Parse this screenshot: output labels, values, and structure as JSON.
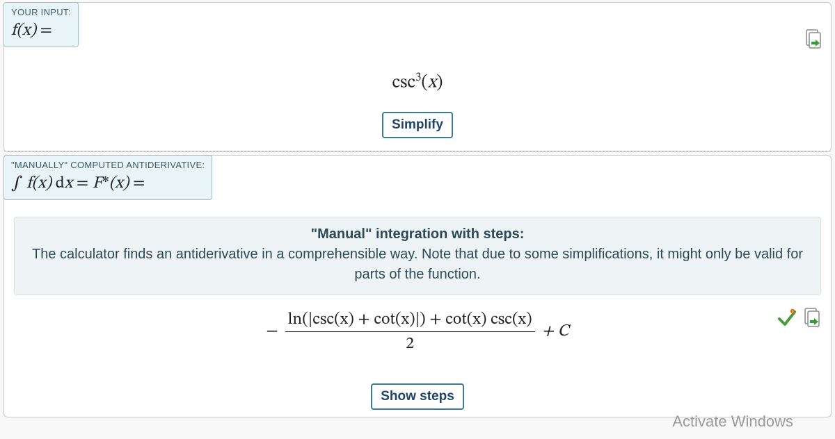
{
  "section1": {
    "tab_label": "YOUR INPUT:",
    "tab_expr_html": "<span class='var'>f</span>(<span class='var'>x</span>) <span class='rom'>=</span>",
    "formula_html": "<span class='fn'>csc</span><sup>3</sup>(<span class='var'>x</span>)",
    "button": "Simplify"
  },
  "section2": {
    "tab_label": "\"MANUALLY\" COMPUTED ANTIDERIVATIVE:",
    "tab_expr_html": "<span class='rom'>∫</span> <span class='var'>f</span>(<span class='var'>x</span>) <span class='rom'>d</span><span class='var'>x</span> <span class='rom'>=</span> <span class='var'>F</span><span class='rom'>*</span>(<span class='var'>x</span>) <span class='rom'>=</span>",
    "note_title": "\"Manual\" integration with steps:",
    "note_body": "The calculator finds an antiderivative in a comprehensible way. Note that due to some simplifications, it might only be valid for parts of the function.",
    "numerator_html": "<span class='fn'>ln</span>(|<span class='fn'>csc</span>(<span class='var'>x</span>) + <span class='fn'>cot</span>(<span class='var'>x</span>)|) + <span class='fn'>cot</span>(<span class='var'>x</span>) <span class='fn'>csc</span>(<span class='var'>x</span>)",
    "denominator": "2",
    "plus_c_html": "+ <span class='var'>C</span>",
    "button": "Show steps"
  },
  "watermark": "Activate Windows",
  "icons": {
    "copy": "copy-icon",
    "check": "check-icon"
  },
  "colors": {
    "tab_bg": "#e8f4f8",
    "tab_border": "#9bbfc9",
    "card_border": "#c8c8c8",
    "note_bg": "#eef3f5",
    "btn_border": "#3a7a9a",
    "text": "#222222",
    "label_text": "#3a5a6a",
    "watermark": "#9a9a9a",
    "check_green": "#4a9a3a",
    "copy_arrow": "#3a9a3a"
  }
}
